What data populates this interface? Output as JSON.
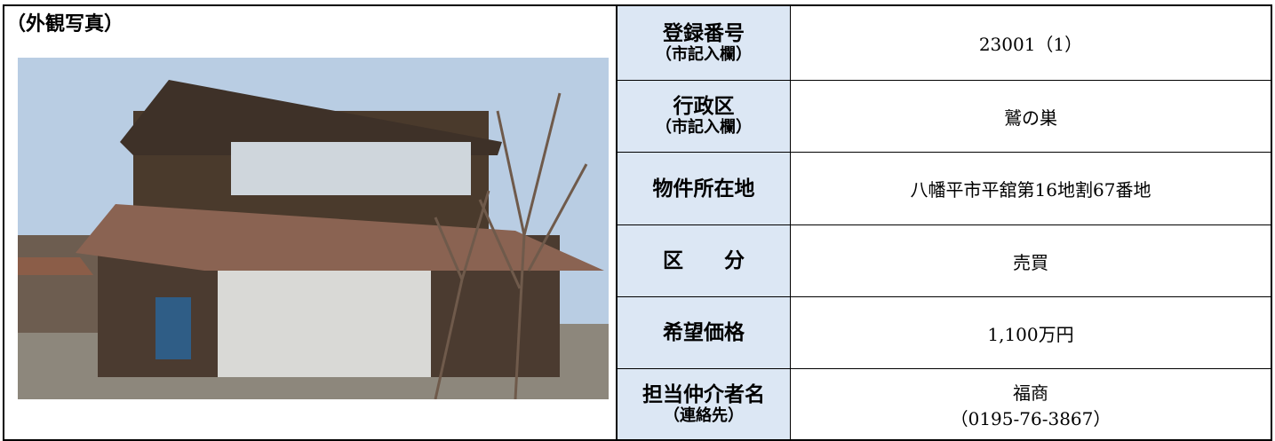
{
  "photo_caption": "（外観写真）",
  "table": {
    "rows": [
      {
        "label": [
          "登録番号",
          "（市記入欄）"
        ],
        "value": [
          "23001（1）"
        ]
      },
      {
        "label": [
          "行政区",
          "（市記入欄）"
        ],
        "value": [
          "鷲の巣"
        ]
      },
      {
        "label": [
          "物件所在地"
        ],
        "value": [
          "八幡平市平舘第16地割67番地"
        ]
      },
      {
        "label": [
          "区　　分"
        ],
        "value": [
          "売買"
        ]
      },
      {
        "label": [
          "希望価格"
        ],
        "value": [
          "1,100万円"
        ]
      },
      {
        "label": [
          "担当仲介者名",
          "（連絡先）"
        ],
        "value": [
          "福商",
          "（0195-76-3867）"
        ]
      }
    ]
  }
}
